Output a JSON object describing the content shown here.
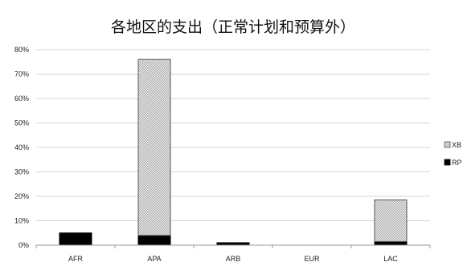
{
  "chart_data": {
    "type": "bar",
    "stacked": true,
    "title": "各地区的支出（正常计划和预算外）",
    "xlabel": "",
    "ylabel": "",
    "categories": [
      "AFR",
      "APA",
      "ARB",
      "EUR",
      "LAC"
    ],
    "series": [
      {
        "name": "RP",
        "values": [
          5,
          4,
          1,
          0,
          1.5
        ],
        "color": "#000000",
        "pattern": "solid"
      },
      {
        "name": "XB",
        "values": [
          0,
          72,
          0,
          0,
          17
        ],
        "color": "#d8d8d8",
        "pattern": "checkered"
      }
    ],
    "ylim": [
      0,
      80
    ],
    "yticks": [
      0,
      10,
      20,
      30,
      40,
      50,
      60,
      70,
      80
    ],
    "ytick_labels": [
      "0%",
      "10%",
      "20%",
      "30%",
      "40%",
      "50%",
      "60%",
      "70%",
      "80%"
    ],
    "grid": true,
    "legend_position": "right",
    "legend_order": [
      "XB",
      "RP"
    ]
  }
}
